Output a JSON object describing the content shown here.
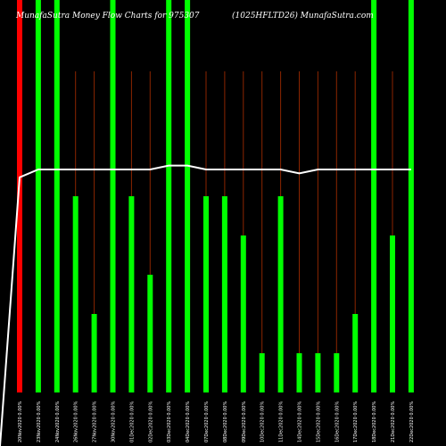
{
  "title_left": "MunafaSutra Money Flow  Charts for 975307",
  "title_right": "(1025HFLTD26) MunafaSutra.com",
  "colors": {
    "background": "#000000",
    "up_bar": "#00ff00",
    "down_bar": "#ff0000",
    "grid_line": "#8b2500",
    "flow_line": "#ffffff"
  },
  "chart_data": {
    "type": "bar",
    "title": "MunafaSutra Money Flow  Charts for 975307 (1025HFLTD26) MunafaSutra.com",
    "categories": [
      "20Nov2020 0.00%",
      "23Nov2020 0.00%",
      "24Nov2020 0.00%",
      "26Nov2020 0.00%",
      "27Nov2020 0.00%",
      "30Nov2020 0.00%",
      "01Dec2020 0.00%",
      "02Dec2020 0.00%",
      "03Dec2020 0.00%",
      "04Dec2020 0.00%",
      "07Dec2020 0.00%",
      "08Dec2020 0.00%",
      "09Dec2020 0.00%",
      "10Dec2020 0.00%",
      "11Dec2020 0.00%",
      "14Dec2020 0.00%",
      "15Dec2020 0.00%",
      "16Dec2020 0.00%",
      "17Dec2020 0.00%",
      "18Dec2020 0.00%",
      "21Dec2020 0.00%",
      "22Dec2020 0.00%"
    ],
    "values": [
      100,
      100,
      100,
      50,
      20,
      100,
      50,
      30,
      100,
      100,
      50,
      50,
      40,
      10,
      50,
      10,
      10,
      10,
      20,
      100,
      40,
      100
    ],
    "direction": [
      "down",
      "up",
      "up",
      "up",
      "up",
      "up",
      "up",
      "up",
      "up",
      "up",
      "up",
      "up",
      "up",
      "up",
      "up",
      "up",
      "up",
      "up",
      "up",
      "up",
      "up",
      "up"
    ],
    "money_flow_line": [
      48,
      50,
      50,
      50,
      50,
      50,
      50,
      50,
      51,
      51,
      50,
      50,
      50,
      50,
      50,
      49,
      50,
      50,
      50,
      50,
      50,
      50
    ],
    "ylim": [
      0,
      100
    ],
    "grid": "vertical",
    "legend": "none"
  }
}
